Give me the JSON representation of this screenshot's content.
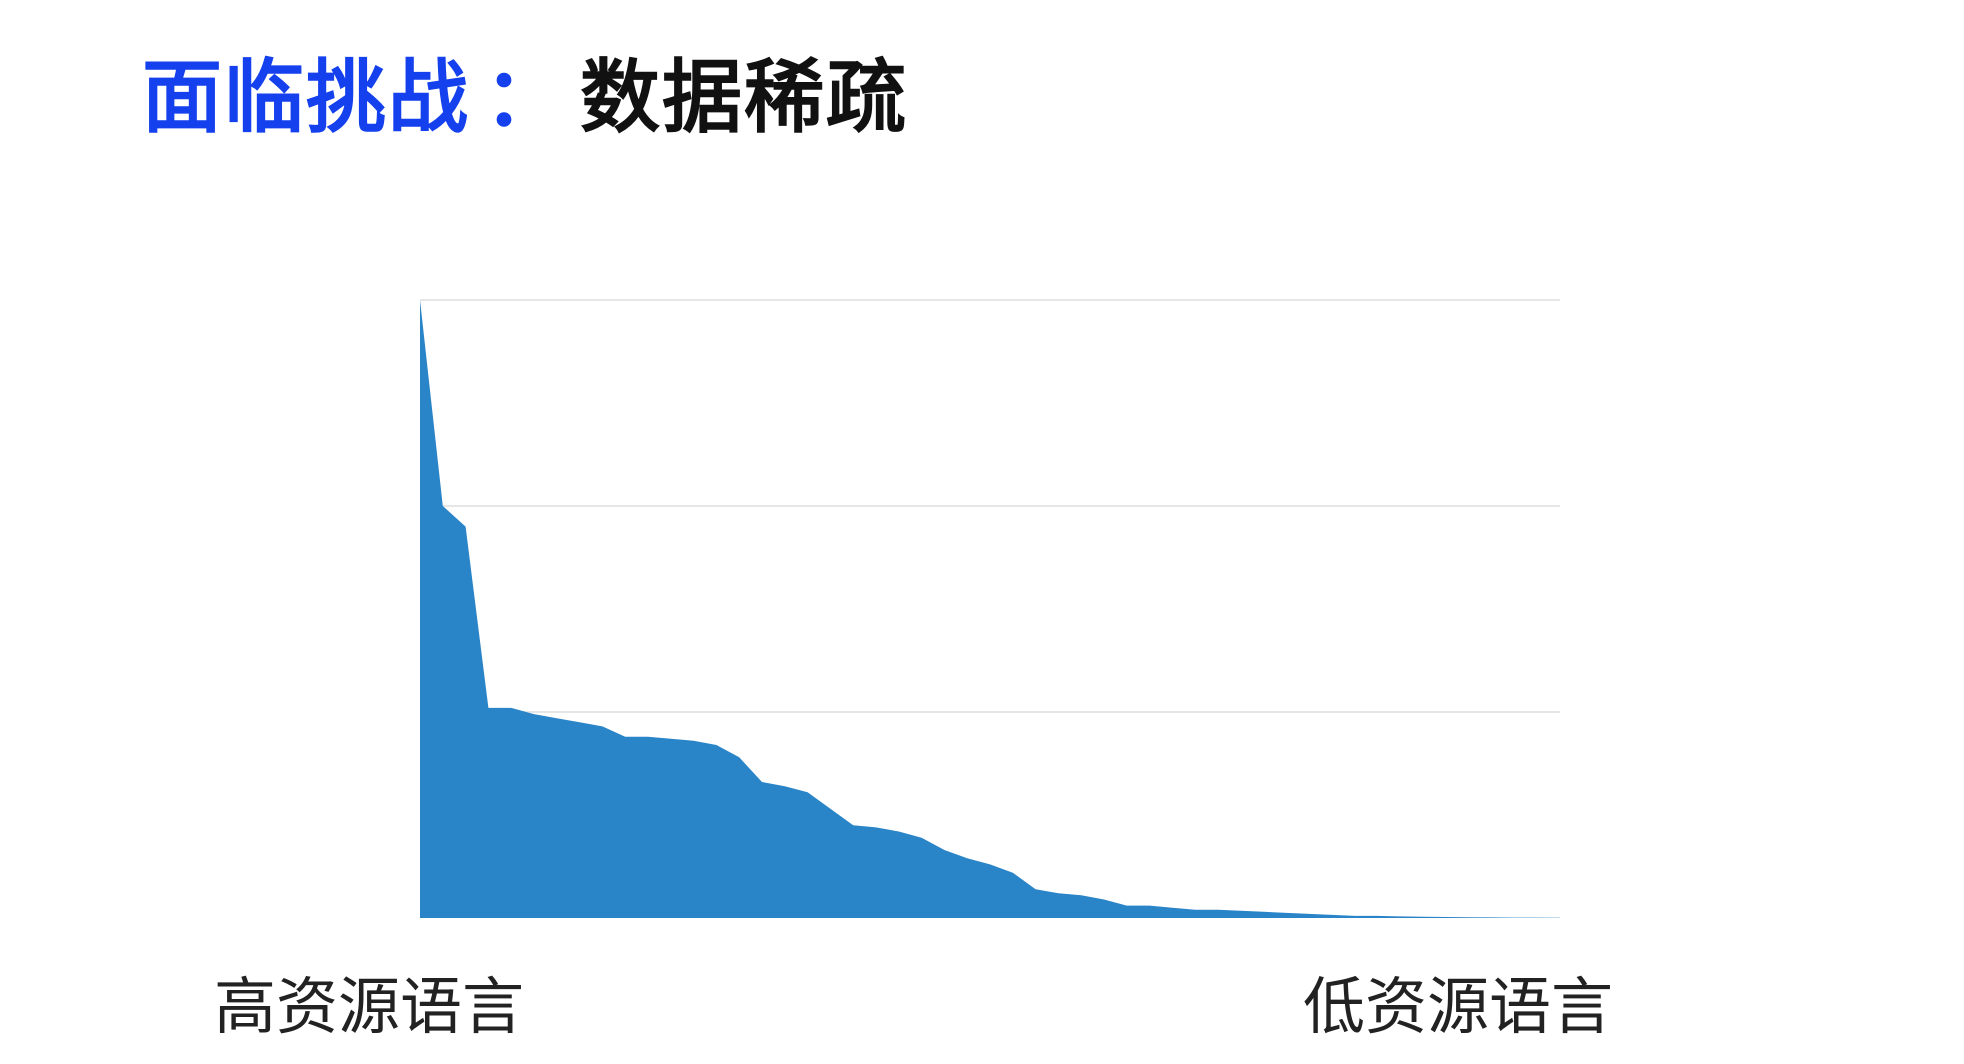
{
  "title": {
    "highlight": "面临挑战",
    "separator": "：",
    "rest": "数据稀疏"
  },
  "colors": {
    "title_accent": "#1440ee",
    "area_fill": "#2a84c8",
    "grid": "#e6e6e6"
  },
  "chart_data": {
    "type": "area",
    "xlabel": "",
    "ylabel": "",
    "x_start_label": "高资源语言",
    "x_end_label": "低资源语言",
    "grid": true,
    "ylim": [
      0,
      3
    ],
    "x": [
      0,
      2,
      4,
      6,
      8,
      10,
      12,
      14,
      16,
      18,
      20,
      22,
      24,
      26,
      28,
      30,
      32,
      34,
      36,
      38,
      40,
      42,
      44,
      46,
      48,
      50,
      52,
      54,
      56,
      58,
      60,
      62,
      64,
      66,
      68,
      70,
      72,
      74,
      76,
      78,
      80,
      82,
      84,
      86,
      88,
      90,
      92,
      94,
      96,
      98,
      100
    ],
    "values": [
      3.0,
      2.0,
      1.9,
      1.02,
      1.02,
      0.99,
      0.97,
      0.95,
      0.93,
      0.88,
      0.88,
      0.87,
      0.86,
      0.84,
      0.78,
      0.66,
      0.64,
      0.61,
      0.53,
      0.45,
      0.44,
      0.42,
      0.39,
      0.33,
      0.29,
      0.26,
      0.22,
      0.14,
      0.12,
      0.11,
      0.09,
      0.06,
      0.06,
      0.05,
      0.04,
      0.04,
      0.035,
      0.03,
      0.025,
      0.02,
      0.015,
      0.01,
      0.01,
      0.008,
      0.006,
      0.005,
      0.004,
      0.003,
      0.002,
      0.002,
      0.001
    ]
  }
}
